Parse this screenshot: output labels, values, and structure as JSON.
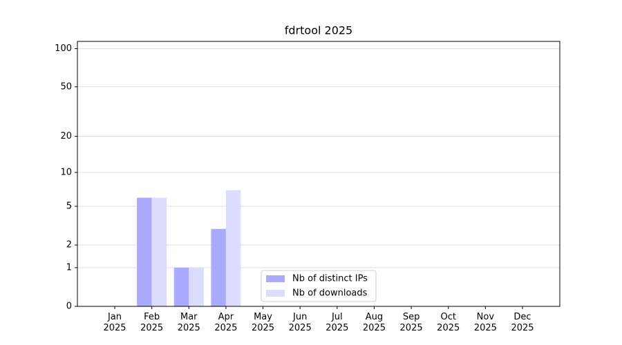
{
  "chart_data": {
    "type": "bar",
    "title": "fdrtool 2025",
    "categories": [
      "Jan\n2025",
      "Feb\n2025",
      "Mar\n2025",
      "Apr\n2025",
      "May\n2025",
      "Jun\n2025",
      "Jul\n2025",
      "Aug\n2025",
      "Sep\n2025",
      "Oct\n2025",
      "Nov\n2025",
      "Dec\n2025"
    ],
    "series": [
      {
        "name": "Nb of distinct IPs",
        "color": "#aaaaff",
        "values": [
          0,
          6,
          1,
          3,
          0,
          0,
          0,
          0,
          0,
          0,
          0,
          0
        ]
      },
      {
        "name": "Nb of downloads",
        "color": "#dcdcff",
        "values": [
          0,
          6,
          1,
          7,
          0,
          0,
          0,
          0,
          0,
          0,
          0,
          0
        ]
      }
    ],
    "yscale": "log1p",
    "ylim": [
      0,
      114
    ],
    "yticks": [
      0,
      1,
      2,
      5,
      10,
      20,
      50,
      100
    ],
    "grid": true,
    "legend": "lower center"
  }
}
